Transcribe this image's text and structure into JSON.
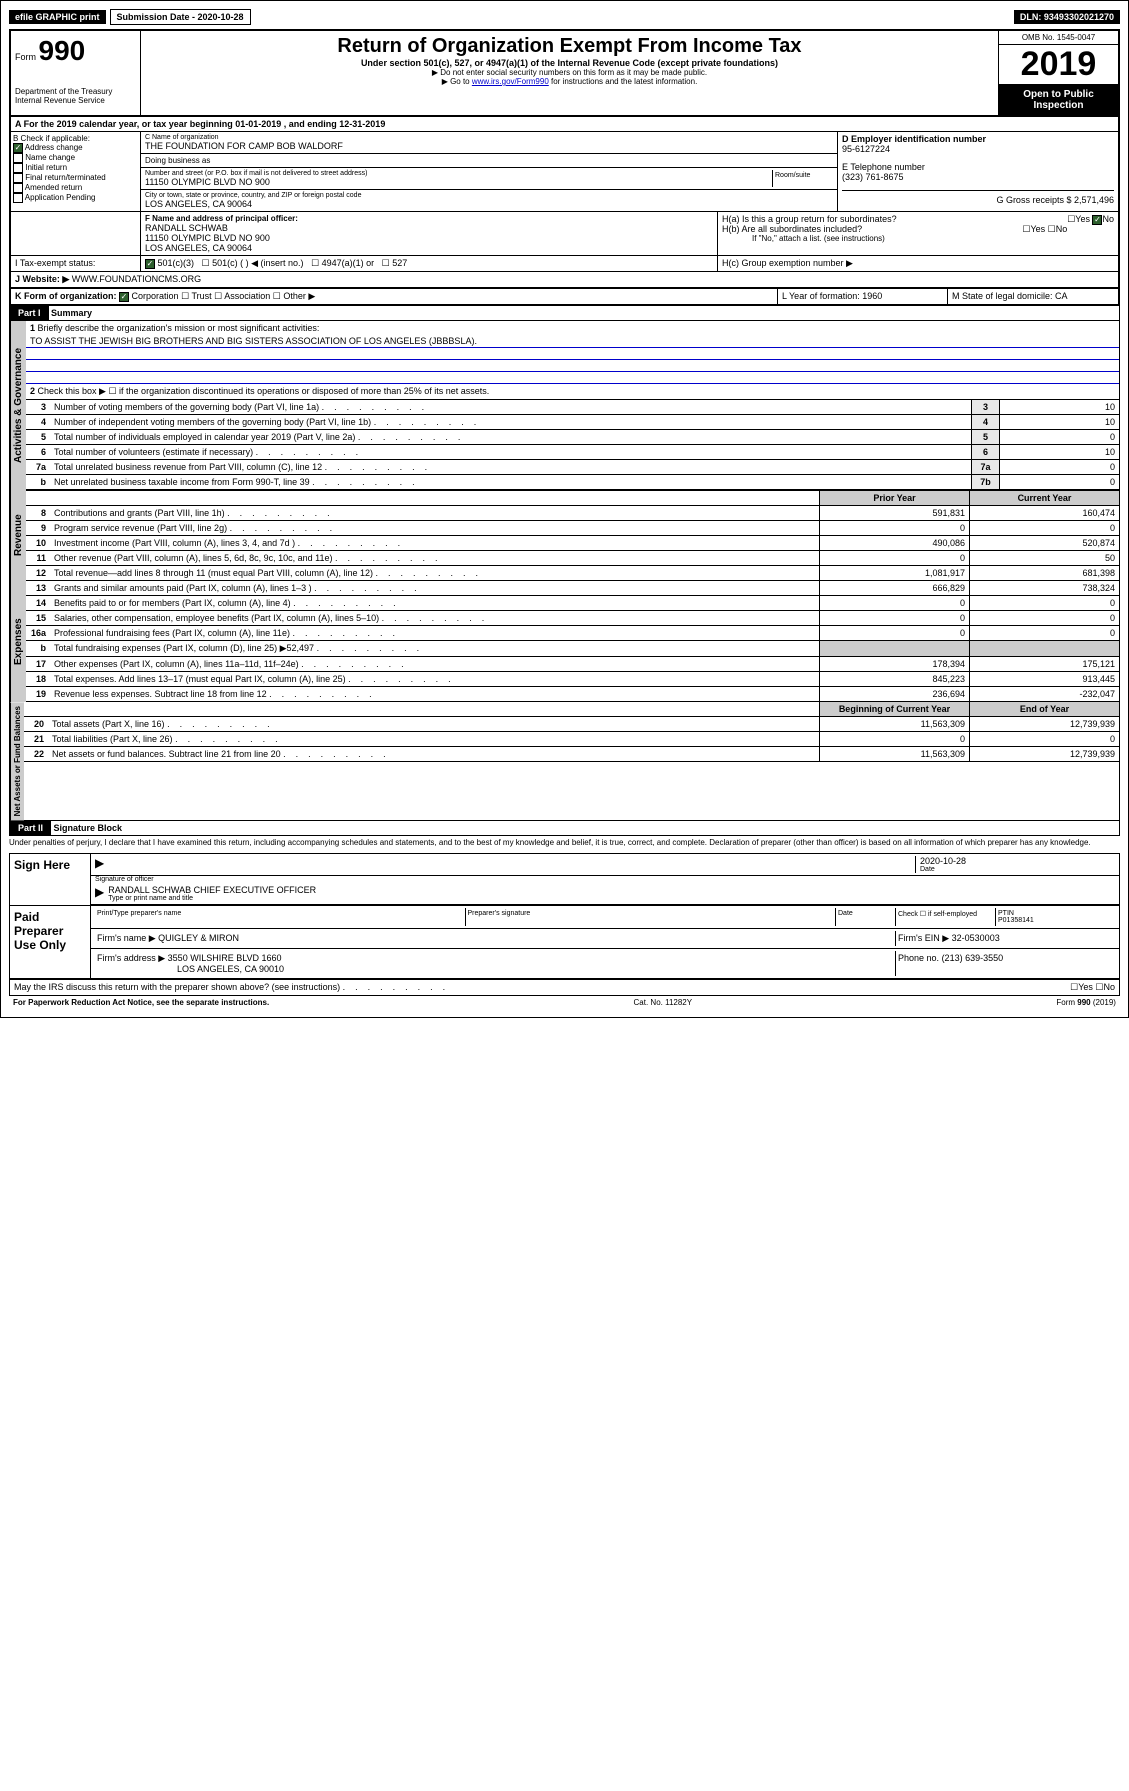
{
  "topbar": {
    "efile": "efile GRAPHIC print",
    "submission": "Submission Date - 2020-10-28",
    "dln": "DLN: 93493302021270"
  },
  "header": {
    "form_label": "Form",
    "form_num": "990",
    "dept": "Department of the Treasury",
    "irs": "Internal Revenue Service",
    "title": "Return of Organization Exempt From Income Tax",
    "subtitle": "Under section 501(c), 527, or 4947(a)(1) of the Internal Revenue Code (except private foundations)",
    "note1": "▶ Do not enter social security numbers on this form as it may be made public.",
    "note2_prefix": "▶ Go to ",
    "note2_link": "www.irs.gov/Form990",
    "note2_suffix": " for instructions and the latest information.",
    "omb": "OMB No. 1545-0047",
    "year": "2019",
    "open": "Open to Public Inspection"
  },
  "period": "A For the 2019 calendar year, or tax year beginning 01-01-2019    , and ending 12-31-2019",
  "section_b": {
    "label": "B Check if applicable:",
    "items": [
      "Address change",
      "Name change",
      "Initial return",
      "Final return/terminated",
      "Amended return",
      "Application Pending"
    ],
    "checked_idx": 0
  },
  "section_c": {
    "name_label": "C Name of organization",
    "name": "THE FOUNDATION FOR CAMP BOB WALDORF",
    "dba_label": "Doing business as",
    "addr_label": "Number and street (or P.O. box if mail is not delivered to street address)",
    "room_label": "Room/suite",
    "addr": "11150 OLYMPIC BLVD NO 900",
    "city_label": "City or town, state or province, country, and ZIP or foreign postal code",
    "city": "LOS ANGELES, CA  90064"
  },
  "section_d": {
    "label": "D Employer identification number",
    "ein": "95-6127224"
  },
  "section_e": {
    "label": "E Telephone number",
    "phone": "(323) 761-8675"
  },
  "section_g": {
    "label": "G Gross receipts $ 2,571,496"
  },
  "section_f": {
    "label": "F  Name and address of principal officer:",
    "name": "RANDALL SCHWAB",
    "addr1": "11150 OLYMPIC BLVD NO 900",
    "addr2": "LOS ANGELES, CA  90064"
  },
  "section_h": {
    "a": "H(a)  Is this a group return for subordinates?",
    "b": "H(b)  Are all subordinates included?",
    "b_note": "If \"No,\" attach a list. (see instructions)",
    "c": "H(c)  Group exemption number ▶"
  },
  "section_i": {
    "label": "I    Tax-exempt status:",
    "opts": [
      "501(c)(3)",
      "501(c) (  ) ◀ (insert no.)",
      "4947(a)(1) or",
      "527"
    ]
  },
  "section_j": {
    "label": "J   Website: ▶",
    "site": "WWW.FOUNDATIONCMS.ORG"
  },
  "section_k": {
    "label": "K Form of organization:",
    "opts": [
      "Corporation",
      "Trust",
      "Association",
      "Other ▶"
    ]
  },
  "section_l": {
    "label": "L Year of formation: 1960"
  },
  "section_m": {
    "label": "M State of legal domicile: CA"
  },
  "part1": {
    "header": "Part I",
    "title": "Summary",
    "vert1": "Activities & Governance",
    "vert2": "Revenue",
    "vert3": "Expenses",
    "vert4": "Net Assets or Fund Balances",
    "line1": "Briefly describe the organization's mission or most significant activities:",
    "mission": "TO ASSIST THE JEWISH BIG BROTHERS AND BIG SISTERS ASSOCIATION OF LOS ANGELES (JBBBSLA).",
    "line2": "Check this box ▶ ☐  if the organization discontinued its operations or disposed of more than 25% of its net assets.",
    "rows_gov": [
      {
        "n": "3",
        "t": "Number of voting members of the governing body (Part VI, line 1a)",
        "b": "3",
        "v": "10"
      },
      {
        "n": "4",
        "t": "Number of independent voting members of the governing body (Part VI, line 1b)",
        "b": "4",
        "v": "10"
      },
      {
        "n": "5",
        "t": "Total number of individuals employed in calendar year 2019 (Part V, line 2a)",
        "b": "5",
        "v": "0"
      },
      {
        "n": "6",
        "t": "Total number of volunteers (estimate if necessary)",
        "b": "6",
        "v": "10"
      },
      {
        "n": "7a",
        "t": "Total unrelated business revenue from Part VIII, column (C), line 12",
        "b": "7a",
        "v": "0"
      },
      {
        "n": "b",
        "t": "Net unrelated business taxable income from Form 990-T, line 39",
        "b": "7b",
        "v": "0"
      }
    ],
    "col_prior": "Prior Year",
    "col_current": "Current Year",
    "col_begin": "Beginning of Current Year",
    "col_end": "End of Year",
    "rows_rev": [
      {
        "n": "8",
        "t": "Contributions and grants (Part VIII, line 1h)",
        "p": "591,831",
        "c": "160,474"
      },
      {
        "n": "9",
        "t": "Program service revenue (Part VIII, line 2g)",
        "p": "0",
        "c": "0"
      },
      {
        "n": "10",
        "t": "Investment income (Part VIII, column (A), lines 3, 4, and 7d )",
        "p": "490,086",
        "c": "520,874"
      },
      {
        "n": "11",
        "t": "Other revenue (Part VIII, column (A), lines 5, 6d, 8c, 9c, 10c, and 11e)",
        "p": "0",
        "c": "50"
      },
      {
        "n": "12",
        "t": "Total revenue—add lines 8 through 11 (must equal Part VIII, column (A), line 12)",
        "p": "1,081,917",
        "c": "681,398"
      }
    ],
    "rows_exp": [
      {
        "n": "13",
        "t": "Grants and similar amounts paid (Part IX, column (A), lines 1–3 )",
        "p": "666,829",
        "c": "738,324"
      },
      {
        "n": "14",
        "t": "Benefits paid to or for members (Part IX, column (A), line 4)",
        "p": "0",
        "c": "0"
      },
      {
        "n": "15",
        "t": "Salaries, other compensation, employee benefits (Part IX, column (A), lines 5–10)",
        "p": "0",
        "c": "0"
      },
      {
        "n": "16a",
        "t": "Professional fundraising fees (Part IX, column (A), line 11e)",
        "p": "0",
        "c": "0"
      },
      {
        "n": "b",
        "t": "Total fundraising expenses (Part IX, column (D), line 25) ▶52,497",
        "p": "",
        "c": "",
        "shaded": true
      },
      {
        "n": "17",
        "t": "Other expenses (Part IX, column (A), lines 11a–11d, 11f–24e)",
        "p": "178,394",
        "c": "175,121"
      },
      {
        "n": "18",
        "t": "Total expenses. Add lines 13–17 (must equal Part IX, column (A), line 25)",
        "p": "845,223",
        "c": "913,445"
      },
      {
        "n": "19",
        "t": "Revenue less expenses. Subtract line 18 from line 12",
        "p": "236,694",
        "c": "-232,047"
      }
    ],
    "rows_net": [
      {
        "n": "20",
        "t": "Total assets (Part X, line 16)",
        "p": "11,563,309",
        "c": "12,739,939"
      },
      {
        "n": "21",
        "t": "Total liabilities (Part X, line 26)",
        "p": "0",
        "c": "0"
      },
      {
        "n": "22",
        "t": "Net assets or fund balances. Subtract line 21 from line 20",
        "p": "11,563,309",
        "c": "12,739,939"
      }
    ]
  },
  "part2": {
    "header": "Part II",
    "title": "Signature Block",
    "perjury": "Under penalties of perjury, I declare that I have examined this return, including accompanying schedules and statements, and to the best of my knowledge and belief, it is true, correct, and complete. Declaration of preparer (other than officer) is based on all information of which preparer has any knowledge.",
    "sign_here": "Sign Here",
    "sig_officer": "Signature of officer",
    "date_label": "Date",
    "date": "2020-10-28",
    "officer_name": "RANDALL SCHWAB  CHIEF EXECUTIVE OFFICER",
    "type_name": "Type or print name and title",
    "paid": "Paid Preparer Use Only",
    "prep_name_label": "Print/Type preparer's name",
    "prep_sig_label": "Preparer's signature",
    "check_self": "Check ☐ if self-employed",
    "ptin_label": "PTIN",
    "ptin": "P01358141",
    "firm_name_label": "Firm's name    ▶",
    "firm_name": "QUIGLEY & MIRON",
    "firm_ein_label": "Firm's EIN ▶",
    "firm_ein": "32-0530003",
    "firm_addr_label": "Firm's address ▶",
    "firm_addr": "3550 WILSHIRE BLVD 1660",
    "firm_city": "LOS ANGELES, CA  90010",
    "phone_label": "Phone no.",
    "phone": "(213) 639-3550",
    "discuss": "May the IRS discuss this return with the preparer shown above? (see instructions)",
    "yes": "Yes",
    "no": "No"
  },
  "footer": {
    "left": "For Paperwork Reduction Act Notice, see the separate instructions.",
    "center": "Cat. No. 11282Y",
    "right": "Form 990 (2019)"
  }
}
